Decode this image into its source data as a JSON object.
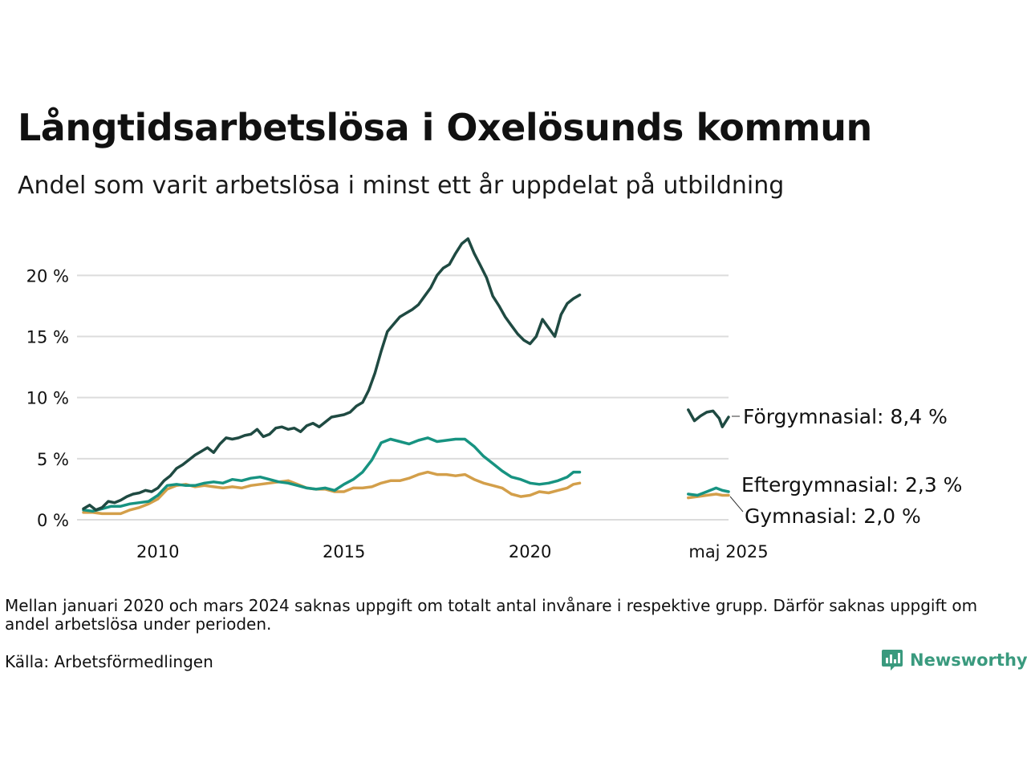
{
  "title": "Långtidsarbetslösa i Oxelösunds kommun",
  "subtitle": "Andel som varit arbetslösa i minst ett år uppdelat på utbildning",
  "note": "Mellan januari 2020 och mars 2024 saknas uppgift om totalt antal invånare i respektive grupp. Därför saknas uppgift om andel arbetslösa under perioden.",
  "source": "Källa: Arbetsförmedlingen",
  "brand": "Newsworthy",
  "colors": {
    "forgymnasial": "#1f4a42",
    "eftergymnasial": "#179381",
    "gymnasial": "#d39f4a",
    "grid": "#dcdcdc",
    "brand": "#3a9a7e"
  },
  "chart_data": {
    "type": "line",
    "x_domain": [
      "2008-01",
      "2025-05"
    ],
    "ylim": [
      0,
      23.5
    ],
    "grid": "horizontal",
    "y_ticks": [
      {
        "value": 0,
        "label": "0 %"
      },
      {
        "value": 5,
        "label": "5 %"
      },
      {
        "value": 10,
        "label": "10 %"
      },
      {
        "value": 15,
        "label": "15 %"
      },
      {
        "value": 20,
        "label": "20 %"
      }
    ],
    "x_ticks": [
      {
        "value": "2010-01",
        "label": "2010"
      },
      {
        "value": "2015-01",
        "label": "2015"
      },
      {
        "value": "2020-01",
        "label": "2020"
      },
      {
        "value": "2025-05",
        "label": "maj 2025"
      }
    ],
    "series": [
      {
        "name": "Förgymnasial",
        "end_label": "Förgymnasial: 8,4 %",
        "color": "#1f4a42",
        "segments": [
          [
            [
              "2008-01",
              0.9
            ],
            [
              "2008-03",
              1.2
            ],
            [
              "2008-05",
              0.8
            ],
            [
              "2008-07",
              1.0
            ],
            [
              "2008-09",
              1.5
            ],
            [
              "2008-11",
              1.4
            ],
            [
              "2009-01",
              1.6
            ],
            [
              "2009-03",
              1.9
            ],
            [
              "2009-05",
              2.1
            ],
            [
              "2009-07",
              2.2
            ],
            [
              "2009-09",
              2.4
            ],
            [
              "2009-11",
              2.3
            ],
            [
              "2010-01",
              2.6
            ],
            [
              "2010-03",
              3.2
            ],
            [
              "2010-05",
              3.6
            ],
            [
              "2010-07",
              4.2
            ],
            [
              "2010-09",
              4.5
            ],
            [
              "2010-11",
              4.9
            ],
            [
              "2011-01",
              5.3
            ],
            [
              "2011-03",
              5.6
            ],
            [
              "2011-05",
              5.9
            ],
            [
              "2011-07",
              5.5
            ],
            [
              "2011-09",
              6.2
            ],
            [
              "2011-11",
              6.7
            ],
            [
              "2012-01",
              6.6
            ],
            [
              "2012-03",
              6.7
            ],
            [
              "2012-05",
              6.9
            ],
            [
              "2012-07",
              7.0
            ],
            [
              "2012-09",
              7.4
            ],
            [
              "2012-11",
              6.8
            ],
            [
              "2013-01",
              7.0
            ],
            [
              "2013-03",
              7.5
            ],
            [
              "2013-05",
              7.6
            ],
            [
              "2013-07",
              7.4
            ],
            [
              "2013-09",
              7.5
            ],
            [
              "2013-11",
              7.2
            ],
            [
              "2014-01",
              7.7
            ],
            [
              "2014-03",
              7.9
            ],
            [
              "2014-05",
              7.6
            ],
            [
              "2014-07",
              8.0
            ],
            [
              "2014-09",
              8.4
            ],
            [
              "2014-11",
              8.5
            ],
            [
              "2015-01",
              8.6
            ],
            [
              "2015-03",
              8.8
            ],
            [
              "2015-05",
              9.3
            ],
            [
              "2015-07",
              9.6
            ],
            [
              "2015-09",
              10.6
            ],
            [
              "2015-11",
              12.0
            ],
            [
              "2016-01",
              13.8
            ],
            [
              "2016-03",
              15.4
            ],
            [
              "2016-05",
              16.0
            ],
            [
              "2016-07",
              16.6
            ],
            [
              "2016-09",
              16.9
            ],
            [
              "2016-11",
              17.2
            ],
            [
              "2017-01",
              17.6
            ],
            [
              "2017-03",
              18.3
            ],
            [
              "2017-05",
              19.0
            ],
            [
              "2017-07",
              20.0
            ],
            [
              "2017-09",
              20.6
            ],
            [
              "2017-11",
              20.9
            ],
            [
              "2018-01",
              21.8
            ],
            [
              "2018-03",
              22.6
            ],
            [
              "2018-05",
              23.0
            ],
            [
              "2018-07",
              21.8
            ],
            [
              "2018-09",
              20.8
            ],
            [
              "2018-11",
              19.8
            ],
            [
              "2019-01",
              18.3
            ],
            [
              "2019-03",
              17.5
            ],
            [
              "2019-05",
              16.6
            ],
            [
              "2019-07",
              15.9
            ],
            [
              "2019-09",
              15.2
            ],
            [
              "2019-11",
              14.7
            ],
            [
              "2020-01",
              14.4
            ],
            [
              "2020-03",
              15.0
            ],
            [
              "2020-05",
              16.4
            ],
            [
              "2020-07",
              15.7
            ],
            [
              "2020-09",
              15.0
            ],
            [
              "2020-11",
              16.8
            ],
            [
              "2021-01",
              17.7
            ],
            [
              "2021-03",
              18.1
            ],
            [
              "2021-05",
              18.4
            ]
          ],
          [
            [
              "2024-04",
              9.0
            ],
            [
              "2024-06",
              8.1
            ],
            [
              "2024-08",
              8.5
            ],
            [
              "2024-10",
              8.8
            ],
            [
              "2024-12",
              8.9
            ],
            [
              "2025-02",
              8.3
            ],
            [
              "2025-03",
              7.6
            ],
            [
              "2025-05",
              8.4
            ]
          ]
        ]
      },
      {
        "name": "Eftergymnasial",
        "end_label": "Eftergymnasial: 2,3 %",
        "color": "#179381",
        "segments": [
          [
            [
              "2008-01",
              0.8
            ],
            [
              "2008-04",
              0.7
            ],
            [
              "2008-07",
              0.9
            ],
            [
              "2008-10",
              1.1
            ],
            [
              "2009-01",
              1.1
            ],
            [
              "2009-04",
              1.3
            ],
            [
              "2009-07",
              1.4
            ],
            [
              "2009-10",
              1.5
            ],
            [
              "2010-01",
              2.0
            ],
            [
              "2010-04",
              2.8
            ],
            [
              "2010-07",
              2.9
            ],
            [
              "2010-10",
              2.8
            ],
            [
              "2011-01",
              2.8
            ],
            [
              "2011-04",
              3.0
            ],
            [
              "2011-07",
              3.1
            ],
            [
              "2011-10",
              3.0
            ],
            [
              "2012-01",
              3.3
            ],
            [
              "2012-04",
              3.2
            ],
            [
              "2012-07",
              3.4
            ],
            [
              "2012-10",
              3.5
            ],
            [
              "2013-01",
              3.3
            ],
            [
              "2013-04",
              3.1
            ],
            [
              "2013-07",
              3.0
            ],
            [
              "2013-10",
              2.8
            ],
            [
              "2014-01",
              2.6
            ],
            [
              "2014-04",
              2.5
            ],
            [
              "2014-07",
              2.6
            ],
            [
              "2014-10",
              2.4
            ],
            [
              "2015-01",
              2.9
            ],
            [
              "2015-04",
              3.3
            ],
            [
              "2015-07",
              3.9
            ],
            [
              "2015-10",
              4.9
            ],
            [
              "2016-01",
              6.3
            ],
            [
              "2016-04",
              6.6
            ],
            [
              "2016-07",
              6.4
            ],
            [
              "2016-10",
              6.2
            ],
            [
              "2017-01",
              6.5
            ],
            [
              "2017-04",
              6.7
            ],
            [
              "2017-07",
              6.4
            ],
            [
              "2017-10",
              6.5
            ],
            [
              "2018-01",
              6.6
            ],
            [
              "2018-04",
              6.6
            ],
            [
              "2018-07",
              6.0
            ],
            [
              "2018-10",
              5.2
            ],
            [
              "2019-01",
              4.6
            ],
            [
              "2019-04",
              4.0
            ],
            [
              "2019-07",
              3.5
            ],
            [
              "2019-10",
              3.3
            ],
            [
              "2020-01",
              3.0
            ],
            [
              "2020-04",
              2.9
            ],
            [
              "2020-07",
              3.0
            ],
            [
              "2020-10",
              3.2
            ],
            [
              "2021-01",
              3.5
            ],
            [
              "2021-03",
              3.9
            ],
            [
              "2021-05",
              3.9
            ]
          ],
          [
            [
              "2024-04",
              2.1
            ],
            [
              "2024-07",
              2.0
            ],
            [
              "2024-10",
              2.3
            ],
            [
              "2025-01",
              2.6
            ],
            [
              "2025-03",
              2.4
            ],
            [
              "2025-05",
              2.3
            ]
          ]
        ]
      },
      {
        "name": "Gymnasial",
        "end_label": "Gymnasial: 2,0 %",
        "color": "#d39f4a",
        "segments": [
          [
            [
              "2008-01",
              0.6
            ],
            [
              "2008-04",
              0.6
            ],
            [
              "2008-07",
              0.5
            ],
            [
              "2008-10",
              0.5
            ],
            [
              "2009-01",
              0.5
            ],
            [
              "2009-04",
              0.8
            ],
            [
              "2009-07",
              1.0
            ],
            [
              "2009-10",
              1.3
            ],
            [
              "2010-01",
              1.7
            ],
            [
              "2010-04",
              2.5
            ],
            [
              "2010-07",
              2.8
            ],
            [
              "2010-10",
              2.9
            ],
            [
              "2011-01",
              2.7
            ],
            [
              "2011-04",
              2.8
            ],
            [
              "2011-07",
              2.7
            ],
            [
              "2011-10",
              2.6
            ],
            [
              "2012-01",
              2.7
            ],
            [
              "2012-04",
              2.6
            ],
            [
              "2012-07",
              2.8
            ],
            [
              "2012-10",
              2.9
            ],
            [
              "2013-01",
              3.0
            ],
            [
              "2013-04",
              3.1
            ],
            [
              "2013-07",
              3.2
            ],
            [
              "2013-10",
              2.9
            ],
            [
              "2014-01",
              2.6
            ],
            [
              "2014-04",
              2.5
            ],
            [
              "2014-07",
              2.5
            ],
            [
              "2014-10",
              2.3
            ],
            [
              "2015-01",
              2.3
            ],
            [
              "2015-04",
              2.6
            ],
            [
              "2015-07",
              2.6
            ],
            [
              "2015-10",
              2.7
            ],
            [
              "2016-01",
              3.0
            ],
            [
              "2016-04",
              3.2
            ],
            [
              "2016-07",
              3.2
            ],
            [
              "2016-10",
              3.4
            ],
            [
              "2017-01",
              3.7
            ],
            [
              "2017-04",
              3.9
            ],
            [
              "2017-07",
              3.7
            ],
            [
              "2017-10",
              3.7
            ],
            [
              "2018-01",
              3.6
            ],
            [
              "2018-04",
              3.7
            ],
            [
              "2018-07",
              3.3
            ],
            [
              "2018-10",
              3.0
            ],
            [
              "2019-01",
              2.8
            ],
            [
              "2019-04",
              2.6
            ],
            [
              "2019-07",
              2.1
            ],
            [
              "2019-10",
              1.9
            ],
            [
              "2020-01",
              2.0
            ],
            [
              "2020-04",
              2.3
            ],
            [
              "2020-07",
              2.2
            ],
            [
              "2020-10",
              2.4
            ],
            [
              "2021-01",
              2.6
            ],
            [
              "2021-03",
              2.9
            ],
            [
              "2021-05",
              3.0
            ]
          ],
          [
            [
              "2024-04",
              1.8
            ],
            [
              "2024-07",
              1.9
            ],
            [
              "2024-10",
              2.0
            ],
            [
              "2025-01",
              2.1
            ],
            [
              "2025-03",
              2.0
            ],
            [
              "2025-05",
              2.0
            ]
          ]
        ]
      }
    ]
  }
}
